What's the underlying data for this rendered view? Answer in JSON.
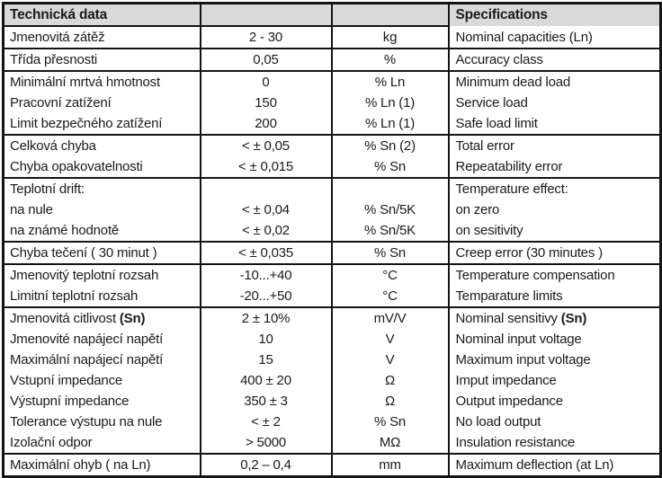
{
  "colors": {
    "header_bg": "#d9d9d9",
    "border": "#141414",
    "text": "#1a1a1a"
  },
  "header": {
    "czech_title": "Technická data",
    "english_title": "Specifications"
  },
  "rows": [
    {
      "label": "Jmenovitá zátěž",
      "value": "2 - 30",
      "unit": "kg",
      "spec": "Nominal capacities (Ln)",
      "sep": true
    },
    {
      "label": "Třída přesnosti",
      "value": "0,05",
      "unit": "%",
      "spec": "Accuracy class",
      "sep": true
    },
    {
      "label": "Minimální mrtvá hmotnost",
      "value": "0",
      "unit": "% Ln",
      "spec": "Minimum dead load",
      "sep": false
    },
    {
      "label": "Pracovní zatížení",
      "value": "150",
      "unit": "% Ln (1)",
      "spec": "Service load",
      "sep": false
    },
    {
      "label": "Limit bezpečného zatížení",
      "value": "200",
      "unit": "% Ln (1)",
      "spec": "Safe load limit",
      "sep": true
    },
    {
      "label": "Celková chyba",
      "value": "< ± 0,05",
      "unit": "% Sn (2)",
      "spec": "Total error",
      "sep": false
    },
    {
      "label": "Chyba opakovatelnosti",
      "value": "< ± 0,015",
      "unit": "% Sn",
      "spec": "Repeatability error",
      "sep": true
    },
    {
      "label": "Teplotní drift:",
      "value": "",
      "unit": "",
      "spec": "Temperature effect:",
      "sep": false
    },
    {
      "label": "na nule",
      "value": "< ± 0,04",
      "unit": "% Sn/5K",
      "spec": "on zero",
      "sep": false
    },
    {
      "label": "na známé hodnotě",
      "value": "< ± 0,02",
      "unit": "% Sn/5K",
      "spec": "on sesitivity",
      "sep": true
    },
    {
      "label": "Chyba tečení ( 30 minut )",
      "value": "< ± 0,035",
      "unit": "% Sn",
      "spec": "Creep error (30 minutes )",
      "sep": true
    },
    {
      "label": "Jmenovitý teplotní rozsah",
      "value": "-10...+40",
      "unit": "°C",
      "spec": "Temperature compensation",
      "sep": false
    },
    {
      "label": "Limitní teplotní rozsah",
      "value": "-20...+50",
      "unit": "°C",
      "spec": "Temparature limits",
      "sep": true
    },
    {
      "label": "Jmenovitá citlivost",
      "label_bold": "(Sn)",
      "value": "2 ± 10%",
      "unit": "mV/V",
      "spec": "Nominal sensitivy",
      "spec_bold": "(Sn)",
      "sep": false
    },
    {
      "label": "Jmenovité napájecí napětí",
      "value": "10",
      "unit": "V",
      "spec": "Nominal input voltage",
      "sep": false
    },
    {
      "label": "Maximální napájecí napětí",
      "value": "15",
      "unit": "V",
      "spec": "Maximum input voltage",
      "sep": false
    },
    {
      "label": "Vstupní impedance",
      "value": "400 ± 20",
      "unit": "Ω",
      "spec": "Imput impedance",
      "sep": false
    },
    {
      "label": "Výstupní impedance",
      "value": "350 ± 3",
      "unit": "Ω",
      "spec": "Output impedance",
      "sep": false
    },
    {
      "label": "Tolerance výstupu na nule",
      "value": "< ± 2",
      "unit": "% Sn",
      "spec": "No load output",
      "sep": false
    },
    {
      "label": "Izolační odpor",
      "value": "> 5000",
      "unit": "MΩ",
      "spec": "Insulation resistance",
      "sep": true
    },
    {
      "label": "Maximální ohyb ( na Ln)",
      "value": "0,2 – 0,4",
      "unit": "mm",
      "spec": "Maximum deflection (at Ln)",
      "sep": false
    }
  ]
}
